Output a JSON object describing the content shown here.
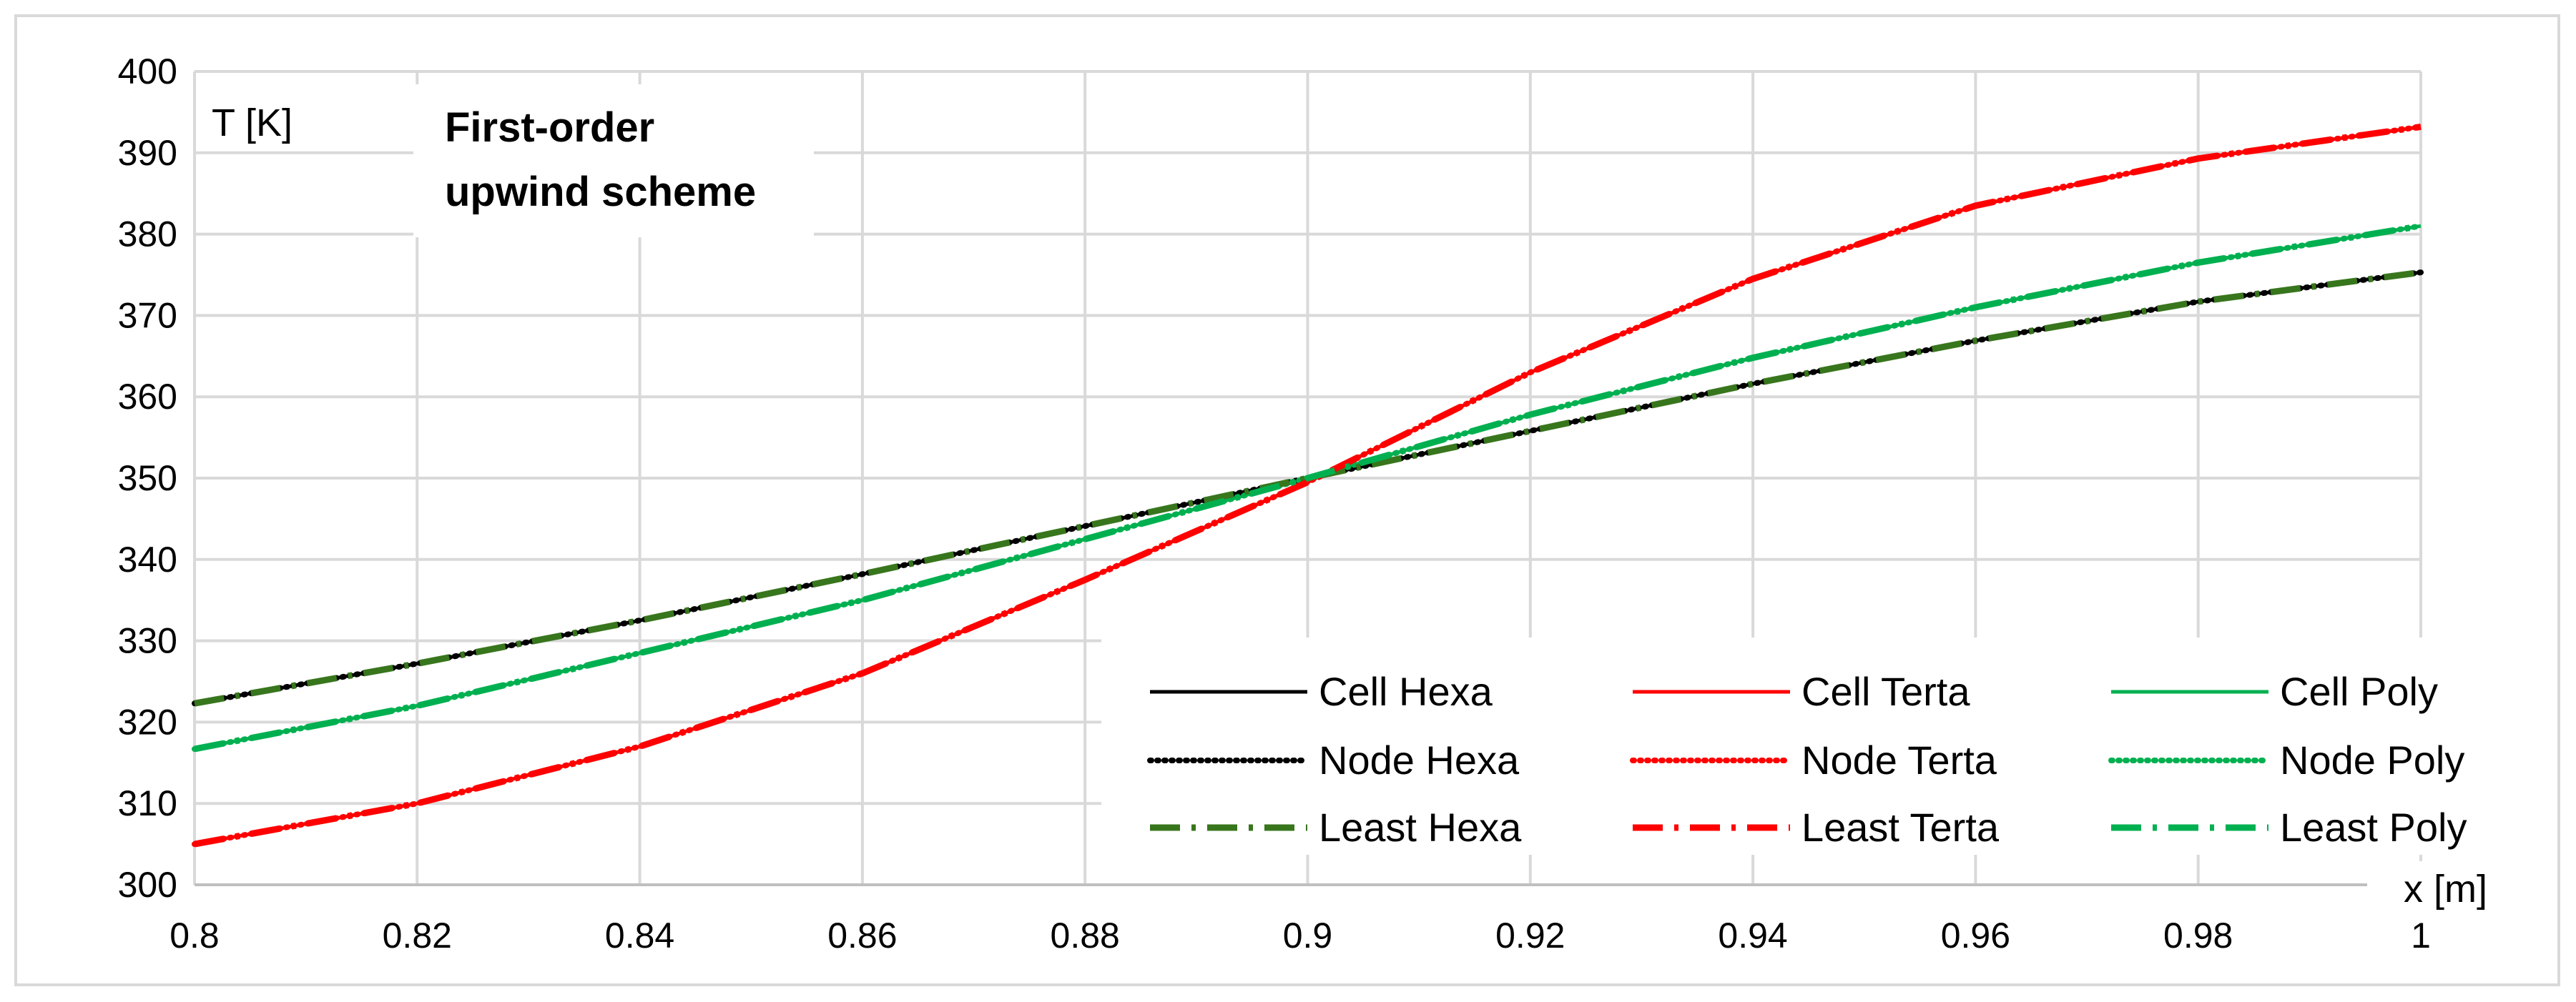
{
  "chart_data": {
    "type": "line",
    "title_lines": [
      "First-order",
      "upwind scheme"
    ],
    "ylabel": "T [K]",
    "xlabel": "x [m]",
    "xlim": [
      0.8,
      1.0
    ],
    "ylim": [
      300,
      400
    ],
    "grid": true,
    "legend_position": "bottom-right",
    "x_ticks": [
      "0.8",
      "0.82",
      "0.84",
      "0.86",
      "0.88",
      "0.9",
      "0.92",
      "0.94",
      "0.96",
      "0.98",
      "1"
    ],
    "y_ticks": [
      "300",
      "310",
      "320",
      "330",
      "340",
      "350",
      "360",
      "370",
      "380",
      "390",
      "400"
    ],
    "x_tick_values": [
      0.8,
      0.82,
      0.84,
      0.86,
      0.88,
      0.9,
      0.92,
      0.94,
      0.96,
      0.98,
      1.0
    ],
    "y_tick_values": [
      300,
      310,
      320,
      330,
      340,
      350,
      360,
      370,
      380,
      390,
      400
    ],
    "x": [
      0.8,
      0.82,
      0.84,
      0.86,
      0.88,
      0.9,
      0.92,
      0.94,
      0.96,
      0.98,
      1.0
    ],
    "series": [
      {
        "name": "Cell Hexa",
        "color": "#000000",
        "style": "solid",
        "values": [
          322.3,
          327.2,
          332.5,
          338.2,
          344.1,
          350.0,
          355.8,
          361.6,
          366.9,
          371.7,
          375.3
        ]
      },
      {
        "name": "Cell Terta",
        "color": "#ff0000",
        "style": "solid",
        "values": [
          305.0,
          310.0,
          317.0,
          326.0,
          337.5,
          349.5,
          363.0,
          374.5,
          383.5,
          389.3,
          393.2
        ]
      },
      {
        "name": "Cell Poly",
        "color": "#00b050",
        "style": "solid",
        "values": [
          316.7,
          322.0,
          328.5,
          335.0,
          342.5,
          350.0,
          357.8,
          364.8,
          371.0,
          376.5,
          381.0
        ]
      },
      {
        "name": "Node Hexa",
        "color": "#000000",
        "style": "dotted",
        "values": [
          322.3,
          327.2,
          332.5,
          338.2,
          344.1,
          350.0,
          355.8,
          361.6,
          366.9,
          371.7,
          375.3
        ]
      },
      {
        "name": "Node Terta",
        "color": "#ff0000",
        "style": "dotted",
        "values": [
          305.0,
          310.0,
          317.0,
          326.0,
          337.5,
          349.5,
          363.0,
          374.5,
          383.5,
          389.3,
          393.2
        ]
      },
      {
        "name": "Node Poly",
        "color": "#00b050",
        "style": "dotted",
        "values": [
          316.7,
          322.0,
          328.5,
          335.0,
          342.5,
          350.0,
          357.8,
          364.8,
          371.0,
          376.5,
          381.0
        ]
      },
      {
        "name": "Least Hexa",
        "color": "#38761d",
        "style": "dashdot",
        "values": [
          322.3,
          327.2,
          332.5,
          338.2,
          344.1,
          350.0,
          355.8,
          361.6,
          366.9,
          371.7,
          375.3
        ]
      },
      {
        "name": "Least Terta",
        "color": "#ff0000",
        "style": "dashdot",
        "values": [
          305.0,
          310.0,
          317.0,
          326.0,
          337.5,
          349.5,
          363.0,
          374.5,
          383.5,
          389.3,
          393.2
        ]
      },
      {
        "name": "Least Poly",
        "color": "#00b050",
        "style": "dashdot",
        "values": [
          316.7,
          322.0,
          328.5,
          335.0,
          342.5,
          350.0,
          357.8,
          364.8,
          371.0,
          376.5,
          381.0
        ]
      }
    ],
    "gridColor": "#d9d9d9",
    "axisColor": "#bfbfbf"
  }
}
